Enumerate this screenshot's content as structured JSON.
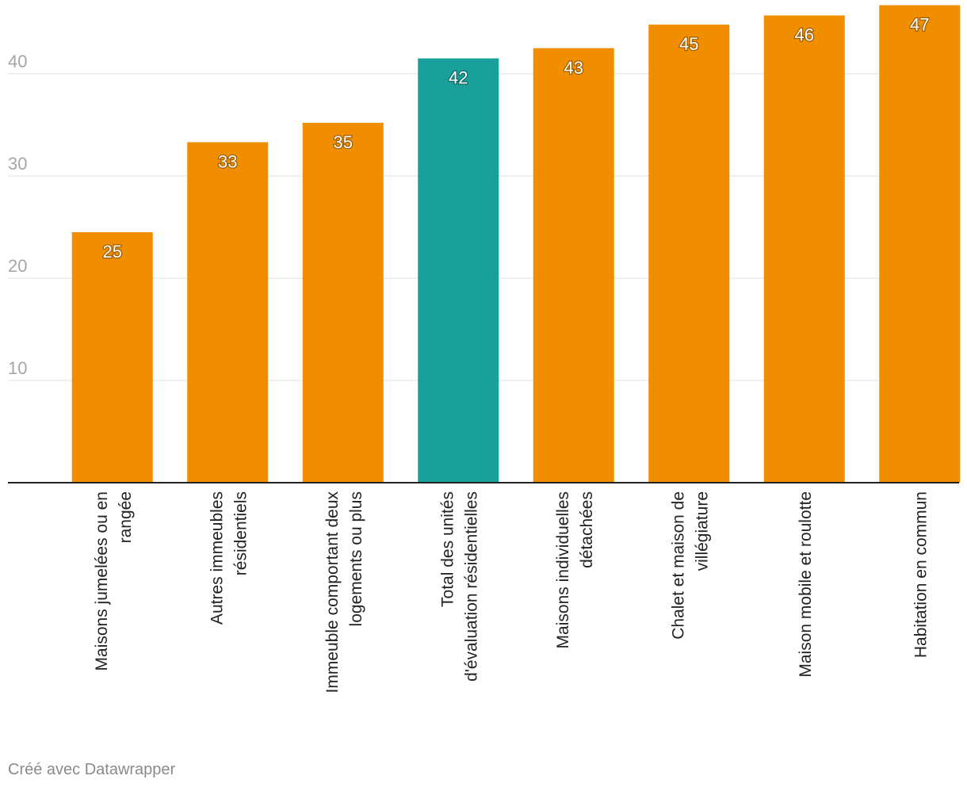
{
  "chart_data": {
    "type": "bar",
    "categories": [
      [
        "Maisons jumelées ou en",
        "rangée"
      ],
      [
        "Autres immeubles",
        "résidentiels"
      ],
      [
        "Immeuble comportant deux",
        "logements ou plus"
      ],
      [
        "Total des unités",
        "d'évaluation résidentielles"
      ],
      [
        "Maisons individuelles",
        "détachées"
      ],
      [
        "Chalet et maison de",
        "villégiature"
      ],
      [
        "Maison mobile et roulotte"
      ],
      [
        "Habitation en commun"
      ]
    ],
    "values": [
      24.5,
      33.3,
      35.2,
      41.5,
      42.5,
      44.8,
      45.7,
      46.7
    ],
    "value_labels": [
      "25",
      "33",
      "35",
      "42",
      "43",
      "45",
      "46",
      "47"
    ],
    "highlight_index": 3,
    "y_ticks": [
      10,
      20,
      30,
      40
    ],
    "ylim": [
      0,
      47
    ],
    "grid": true,
    "colors": {
      "bar": "#f08e00",
      "highlight": "#19a09b",
      "grid": "#e1e1e1",
      "axis": "#222222",
      "tick_label": "#a6a6a6",
      "category_label": "#222222",
      "value_label": "#ffffff"
    }
  },
  "footer": {
    "credit": "Créé avec Datawrapper"
  }
}
